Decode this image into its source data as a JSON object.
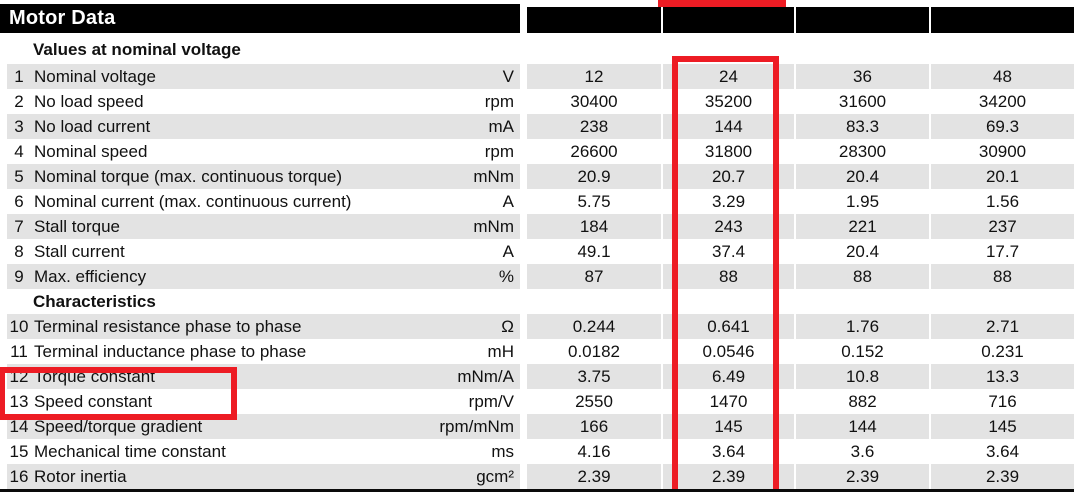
{
  "title": "Motor Data",
  "header_blocks": [
    "",
    "",
    "",
    ""
  ],
  "sections": [
    {
      "heading": "Values at nominal voltage",
      "rows": [
        {
          "num": "1",
          "label": "Nominal voltage",
          "unit": "V",
          "values": [
            "12",
            "24",
            "36",
            "48"
          ],
          "shaded": true
        },
        {
          "num": "2",
          "label": "No load speed",
          "unit": "rpm",
          "values": [
            "30400",
            "35200",
            "31600",
            "34200"
          ],
          "shaded": false
        },
        {
          "num": "3",
          "label": "No load current",
          "unit": "mA",
          "values": [
            "238",
            "144",
            "83.3",
            "69.3"
          ],
          "shaded": true
        },
        {
          "num": "4",
          "label": "Nominal speed",
          "unit": "rpm",
          "values": [
            "26600",
            "31800",
            "28300",
            "30900"
          ],
          "shaded": false
        },
        {
          "num": "5",
          "label": "Nominal torque (max. continuous torque)",
          "unit": "mNm",
          "values": [
            "20.9",
            "20.7",
            "20.4",
            "20.1"
          ],
          "shaded": true
        },
        {
          "num": "6",
          "label": "Nominal current (max. continuous current)",
          "unit": "A",
          "values": [
            "5.75",
            "3.29",
            "1.95",
            "1.56"
          ],
          "shaded": false
        },
        {
          "num": "7",
          "label": "Stall torque",
          "unit": "mNm",
          "values": [
            "184",
            "243",
            "221",
            "237"
          ],
          "shaded": true
        },
        {
          "num": "8",
          "label": "Stall current",
          "unit": "A",
          "values": [
            "49.1",
            "37.4",
            "20.4",
            "17.7"
          ],
          "shaded": false
        },
        {
          "num": "9",
          "label": "Max. efficiency",
          "unit": "%",
          "values": [
            "87",
            "88",
            "88",
            "88"
          ],
          "shaded": true
        }
      ]
    },
    {
      "heading": "Characteristics",
      "rows": [
        {
          "num": "10",
          "label": "Terminal resistance phase to phase",
          "unit": "Ω",
          "values": [
            "0.244",
            "0.641",
            "1.76",
            "2.71"
          ],
          "shaded": true
        },
        {
          "num": "11",
          "label": "Terminal inductance phase to phase",
          "unit": "mH",
          "values": [
            "0.0182",
            "0.0546",
            "0.152",
            "0.231"
          ],
          "shaded": false
        },
        {
          "num": "12",
          "label": "Torque constant",
          "unit": "mNm/A",
          "values": [
            "3.75",
            "6.49",
            "10.8",
            "13.3"
          ],
          "shaded": true
        },
        {
          "num": "13",
          "label": "Speed constant",
          "unit": "rpm/V",
          "values": [
            "2550",
            "1470",
            "882",
            "716"
          ],
          "shaded": false
        },
        {
          "num": "14",
          "label": "Speed/torque gradient",
          "unit": "rpm/mNm",
          "values": [
            "166",
            "145",
            "144",
            "145"
          ],
          "shaded": true
        },
        {
          "num": "15",
          "label": "Mechanical time constant",
          "unit": "ms",
          "values": [
            "4.16",
            "3.64",
            "3.6",
            "3.64"
          ],
          "shaded": false
        },
        {
          "num": "16",
          "label": "Rotor inertia",
          "unit": "gcm²",
          "values": [
            "2.39",
            "2.39",
            "2.39",
            "2.39"
          ],
          "shaded": true
        }
      ]
    }
  ],
  "highlights": {
    "highlighted_column_value": "24",
    "highlighted_row_labels": [
      "Torque constant",
      "Speed constant"
    ]
  },
  "colors": {
    "highlight_red": "#ed1c24",
    "row_shade": "#e3e3e3",
    "header_bar": "#000000"
  }
}
